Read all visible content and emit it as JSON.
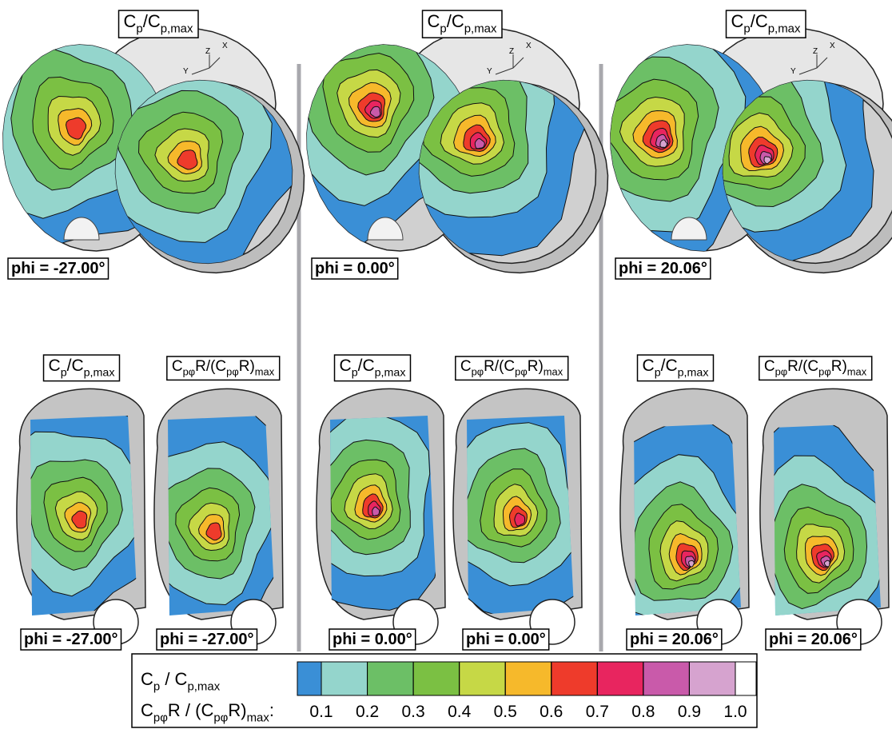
{
  "top_panels": [
    {
      "title": [
        {
          "text": "C"
        },
        {
          "text": "p",
          "sub": true
        },
        {
          "text": "/C"
        },
        {
          "text": "p,max",
          "sub": true
        }
      ],
      "axes": [
        "Z",
        "Y",
        "X"
      ],
      "phi": "phi = -27.00°"
    },
    {
      "title": [
        {
          "text": "C"
        },
        {
          "text": "p",
          "sub": true
        },
        {
          "text": "/C"
        },
        {
          "text": "p,max",
          "sub": true
        }
      ],
      "axes": [
        "Z",
        "Y",
        "X"
      ],
      "phi": "phi = 0.00°"
    },
    {
      "title": [
        {
          "text": "C"
        },
        {
          "text": "p",
          "sub": true
        },
        {
          "text": "/C"
        },
        {
          "text": "p,max",
          "sub": true
        }
      ],
      "axes": [
        "Z",
        "Y",
        "X"
      ],
      "phi": "phi = 20.06°"
    }
  ],
  "bottom_panels": [
    {
      "title": [
        {
          "text": "C"
        },
        {
          "text": "p",
          "sub": true
        },
        {
          "text": "/C"
        },
        {
          "text": "p,max",
          "sub": true
        }
      ],
      "phi": "phi = -27.00°"
    },
    {
      "title": [
        {
          "text": "C"
        },
        {
          "text": "pφ",
          "sub": true
        },
        {
          "text": "R/(C"
        },
        {
          "text": "pφ",
          "sub": true
        },
        {
          "text": "R)"
        },
        {
          "text": "max",
          "sub": true
        }
      ],
      "phi": "phi = -27.00°"
    },
    {
      "title": [
        {
          "text": "C"
        },
        {
          "text": "p",
          "sub": true
        },
        {
          "text": "/C"
        },
        {
          "text": "p,max",
          "sub": true
        }
      ],
      "phi": "phi = 0.00°"
    },
    {
      "title": [
        {
          "text": "C"
        },
        {
          "text": "pφ",
          "sub": true
        },
        {
          "text": "R/(C"
        },
        {
          "text": "pφ",
          "sub": true
        },
        {
          "text": "R)"
        },
        {
          "text": "max",
          "sub": true
        }
      ],
      "phi": "phi = 0.00°"
    },
    {
      "title": [
        {
          "text": "C"
        },
        {
          "text": "p",
          "sub": true
        },
        {
          "text": "/C"
        },
        {
          "text": "p,max",
          "sub": true
        }
      ],
      "phi": "phi = 20.06°"
    },
    {
      "title": [
        {
          "text": "C"
        },
        {
          "text": "pφ",
          "sub": true
        },
        {
          "text": "R/(C"
        },
        {
          "text": "pφ",
          "sub": true
        },
        {
          "text": "R)"
        },
        {
          "text": "max",
          "sub": true
        }
      ],
      "phi": "phi = 20.06°"
    }
  ],
  "legend": {
    "rows": [
      [
        {
          "text": "C"
        },
        {
          "text": "p",
          "sub": true
        },
        {
          "text": " / C"
        },
        {
          "text": "p,max",
          "sub": true
        }
      ],
      [
        {
          "text": "C"
        },
        {
          "text": "pφ",
          "sub": true
        },
        {
          "text": "R / (C"
        },
        {
          "text": "pφ",
          "sub": true
        },
        {
          "text": "R)"
        },
        {
          "text": "max",
          "sub": true
        },
        {
          "text": ":"
        }
      ]
    ],
    "colors": [
      "#3a8fd6",
      "#94d5cc",
      "#6cbf66",
      "#7bc043",
      "#c6d846",
      "#f6b92b",
      "#ee3b2b",
      "#e8255f",
      "#c95aaa",
      "#d6a3cf",
      "#ffffff"
    ],
    "ticks": [
      0.1,
      0.2,
      0.3,
      0.4,
      0.5,
      0.6,
      0.7,
      0.8,
      0.9,
      {
        "value": 1.0,
        "label": "1.0"
      }
    ]
  }
}
